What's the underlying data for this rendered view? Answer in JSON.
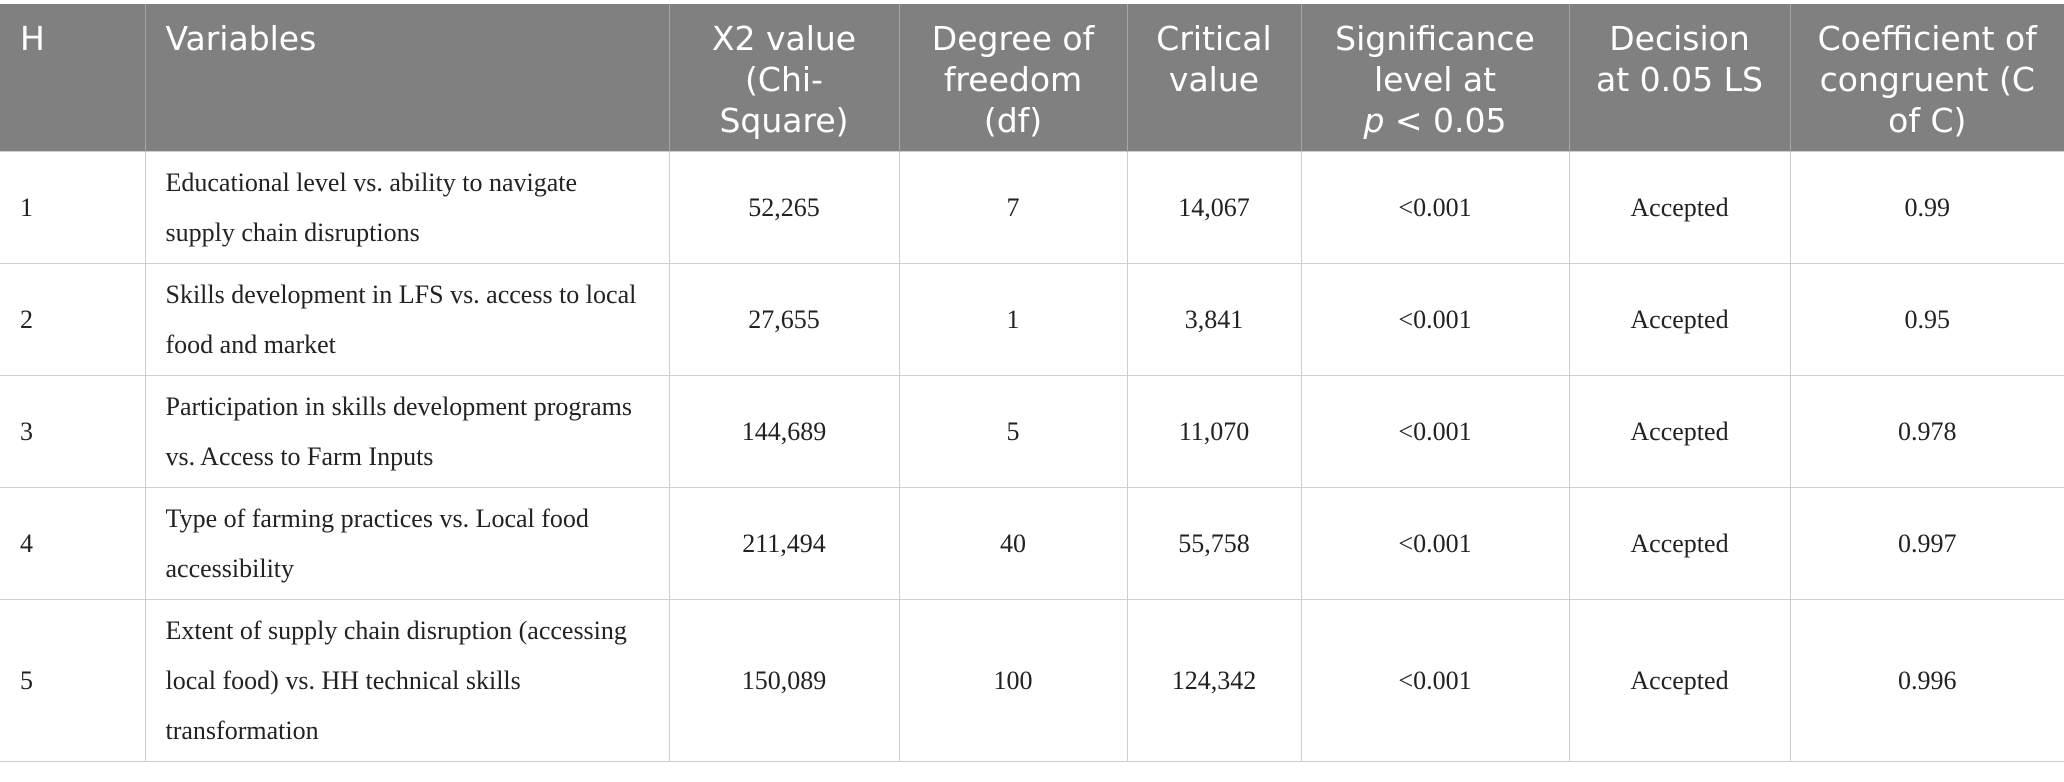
{
  "table": {
    "header": [
      "H",
      "Variables",
      "X2 value (Chi-Square)",
      "Degree of freedom (df)",
      "Critical value",
      [
        "Significance level at",
        "p",
        "< 0.05"
      ],
      "Decision at 0.05 LS",
      "Coefficient of congruent (C of C)"
    ],
    "rows": [
      [
        "1",
        "Educational level vs. ability to navigate supply chain disruptions",
        "52,265",
        "7",
        "14,067",
        "<0.001",
        "Accepted",
        "0.99"
      ],
      [
        "2",
        "Skills development in LFS vs. access to local food and market",
        "27,655",
        "1",
        "3,841",
        "<0.001",
        "Accepted",
        "0.95"
      ],
      [
        "3",
        "Participation in skills development programs vs. Access to Farm Inputs",
        "144,689",
        "5",
        "11,070",
        "<0.001",
        "Accepted",
        "0.978"
      ],
      [
        "4",
        "Type of farming practices vs. Local food accessibility",
        "211,494",
        "40",
        "55,758",
        "<0.001",
        "Accepted",
        "0.997"
      ],
      [
        "5",
        "Extent of supply chain disruption (accessing local food) vs. HH technical skills transformation",
        "150,089",
        "100",
        "124,342",
        "<0.001",
        "Accepted",
        "0.996"
      ]
    ]
  }
}
